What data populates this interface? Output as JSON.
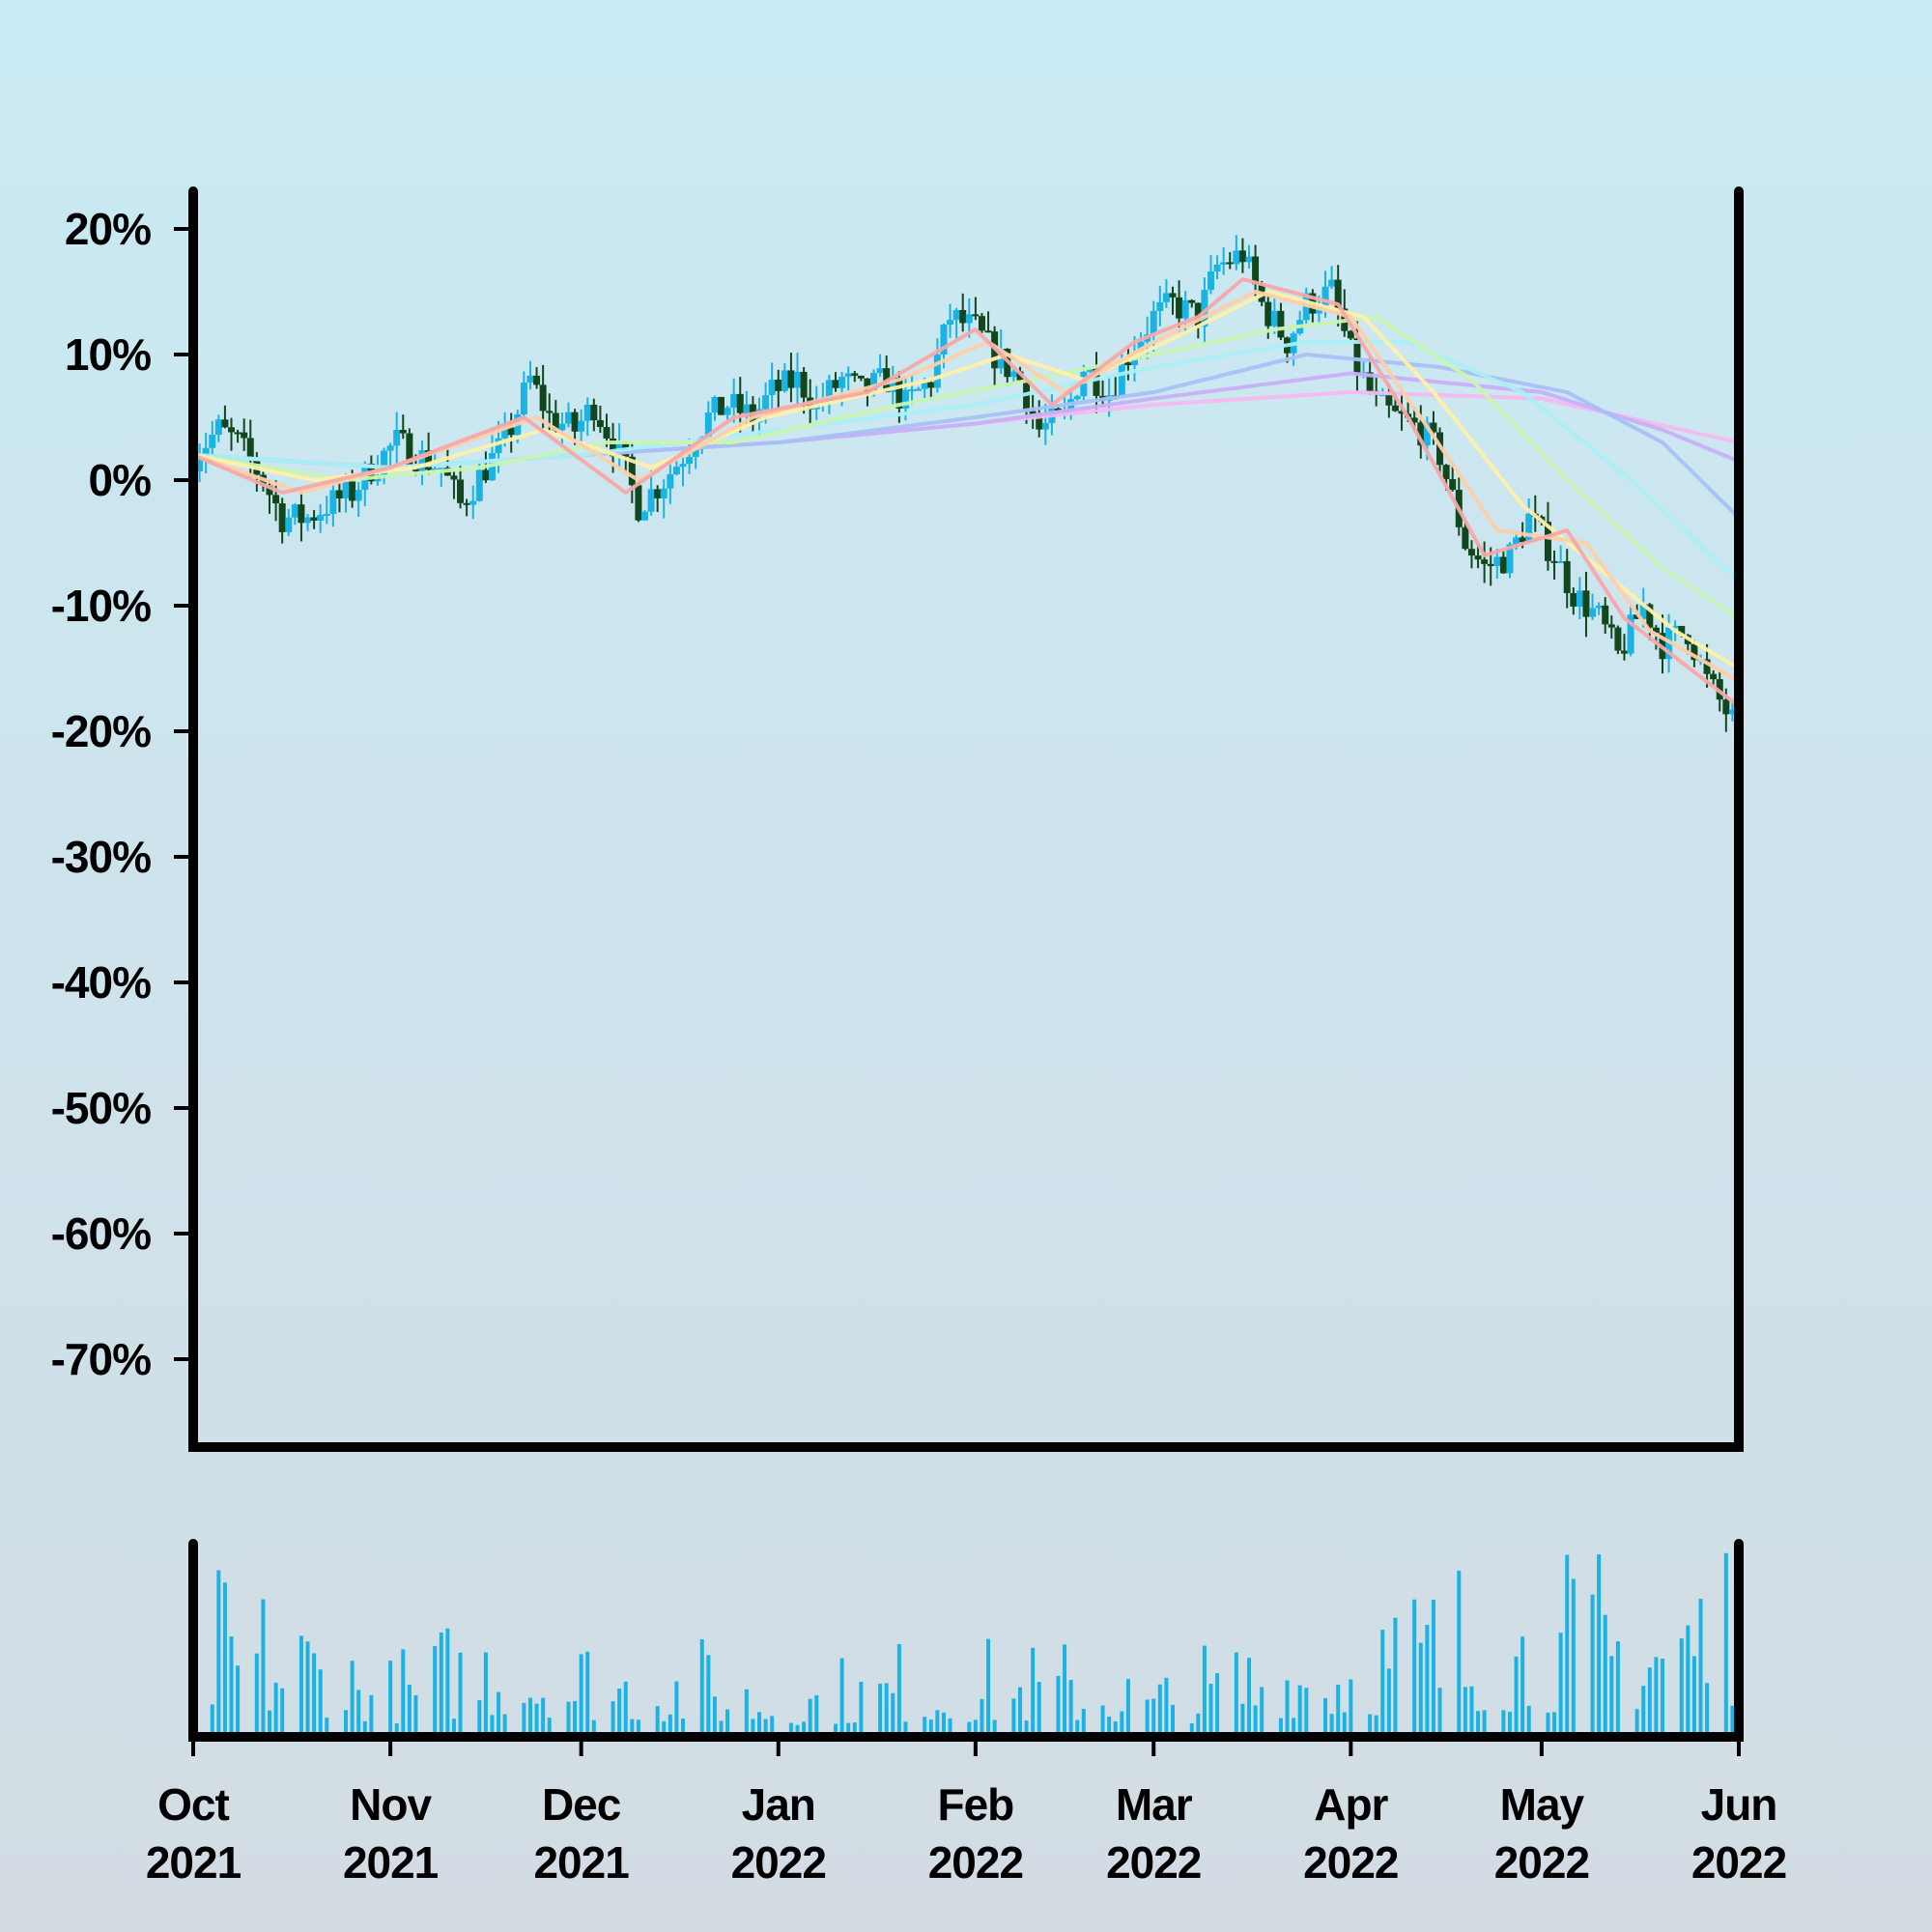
{
  "chart_data": {
    "type": "candlestick",
    "y_axis": {
      "unit": "%",
      "ylim": [
        -77,
        23
      ],
      "ticks": [
        20,
        10,
        0,
        -10,
        -20,
        -30,
        -40,
        -50,
        -60,
        -70
      ],
      "tick_labels": [
        "20%",
        "10%",
        "0%",
        "-10%",
        "-20%",
        "-30%",
        "-40%",
        "-50%",
        "-60%",
        "-70%"
      ]
    },
    "x_axis": {
      "start": "2021-10-01",
      "end": "2022-06-01",
      "ticks": [
        "2021-10-01",
        "2021-11-01",
        "2021-12-01",
        "2022-01-01",
        "2022-02-01",
        "2022-03-01",
        "2022-04-01",
        "2022-05-01",
        "2022-06-01"
      ],
      "tick_months": [
        "Oct",
        "Nov",
        "Dec",
        "Jan",
        "Feb",
        "Mar",
        "Apr",
        "May",
        "Jun"
      ],
      "tick_years": [
        "2021",
        "2021",
        "2021",
        "2022",
        "2022",
        "2022",
        "2022",
        "2022",
        "2022"
      ]
    },
    "price_close_pct": [
      [
        "2021-10-01",
        2
      ],
      [
        "2021-10-05",
        4
      ],
      [
        "2021-10-08",
        3
      ],
      [
        "2021-10-12",
        0
      ],
      [
        "2021-10-15",
        -3
      ],
      [
        "2021-10-19",
        -3
      ],
      [
        "2021-10-22",
        -2
      ],
      [
        "2021-10-26",
        -1
      ],
      [
        "2021-10-29",
        1
      ],
      [
        "2021-11-02",
        3
      ],
      [
        "2021-11-05",
        2
      ],
      [
        "2021-11-09",
        1
      ],
      [
        "2021-11-12",
        -2
      ],
      [
        "2021-11-16",
        1
      ],
      [
        "2021-11-19",
        3
      ],
      [
        "2021-11-23",
        8
      ],
      [
        "2021-11-26",
        5
      ],
      [
        "2021-11-30",
        4
      ],
      [
        "2021-12-03",
        6
      ],
      [
        "2021-12-07",
        2
      ],
      [
        "2021-12-10",
        -2
      ],
      [
        "2021-12-14",
        0
      ],
      [
        "2021-12-17",
        2
      ],
      [
        "2021-12-21",
        5
      ],
      [
        "2021-12-24",
        6
      ],
      [
        "2021-12-28",
        5
      ],
      [
        "2021-12-31",
        7
      ],
      [
        "2022-01-04",
        8
      ],
      [
        "2022-01-07",
        6
      ],
      [
        "2022-01-11",
        8
      ],
      [
        "2022-01-14",
        7
      ],
      [
        "2022-01-18",
        8
      ],
      [
        "2022-01-21",
        6
      ],
      [
        "2022-01-25",
        8
      ],
      [
        "2022-01-28",
        13
      ],
      [
        "2022-02-01",
        12
      ],
      [
        "2022-02-04",
        10
      ],
      [
        "2022-02-08",
        8
      ],
      [
        "2022-02-11",
        4
      ],
      [
        "2022-02-15",
        5
      ],
      [
        "2022-02-18",
        9
      ],
      [
        "2022-02-22",
        7
      ],
      [
        "2022-02-25",
        10
      ],
      [
        "2022-03-01",
        13
      ],
      [
        "2022-03-04",
        14
      ],
      [
        "2022-03-08",
        13
      ],
      [
        "2022-03-11",
        17
      ],
      [
        "2022-03-15",
        18
      ],
      [
        "2022-03-18",
        14
      ],
      [
        "2022-03-22",
        11
      ],
      [
        "2022-03-25",
        14
      ],
      [
        "2022-03-29",
        15
      ],
      [
        "2022-04-01",
        10
      ],
      [
        "2022-04-05",
        6
      ],
      [
        "2022-04-08",
        5
      ],
      [
        "2022-04-12",
        4
      ],
      [
        "2022-04-15",
        2
      ],
      [
        "2022-04-19",
        -5
      ],
      [
        "2022-04-22",
        -7
      ],
      [
        "2022-04-26",
        -6
      ],
      [
        "2022-04-29",
        -3
      ],
      [
        "2022-05-03",
        -6
      ],
      [
        "2022-05-06",
        -9
      ],
      [
        "2022-05-10",
        -11
      ],
      [
        "2022-05-13",
        -14
      ],
      [
        "2022-05-17",
        -10
      ],
      [
        "2022-05-20",
        -13
      ],
      [
        "2022-05-24",
        -12
      ],
      [
        "2022-05-27",
        -16
      ],
      [
        "2022-06-01",
        -20
      ]
    ],
    "moving_averages": [
      {
        "color": "#f7a8a8",
        "points": [
          [
            "2021-10-01",
            2
          ],
          [
            "2021-10-15",
            -1
          ],
          [
            "2021-11-01",
            1
          ],
          [
            "2021-11-22",
            5
          ],
          [
            "2021-12-08",
            -1
          ],
          [
            "2021-12-25",
            5
          ],
          [
            "2022-01-15",
            7
          ],
          [
            "2022-02-01",
            12
          ],
          [
            "2022-02-13",
            6
          ],
          [
            "2022-02-26",
            11
          ],
          [
            "2022-03-08",
            13
          ],
          [
            "2022-03-15",
            16
          ],
          [
            "2022-03-30",
            14
          ],
          [
            "2022-04-10",
            5
          ],
          [
            "2022-04-22",
            -6
          ],
          [
            "2022-05-05",
            -4
          ],
          [
            "2022-05-14",
            -11
          ],
          [
            "2022-06-01",
            -18
          ]
        ]
      },
      {
        "color": "#ffcfa8",
        "points": [
          [
            "2021-10-01",
            2
          ],
          [
            "2021-10-18",
            -1
          ],
          [
            "2021-11-01",
            1
          ],
          [
            "2021-11-24",
            5
          ],
          [
            "2021-12-10",
            0
          ],
          [
            "2021-12-28",
            5
          ],
          [
            "2022-01-20",
            8
          ],
          [
            "2022-02-03",
            11
          ],
          [
            "2022-02-15",
            7
          ],
          [
            "2022-03-01",
            11
          ],
          [
            "2022-03-17",
            15
          ],
          [
            "2022-04-01",
            13
          ],
          [
            "2022-04-12",
            5
          ],
          [
            "2022-04-24",
            -4
          ],
          [
            "2022-05-08",
            -5
          ],
          [
            "2022-05-18",
            -12
          ],
          [
            "2022-06-01",
            -16
          ]
        ]
      },
      {
        "color": "#fff0a8",
        "points": [
          [
            "2021-10-01",
            2
          ],
          [
            "2021-10-20",
            0
          ],
          [
            "2021-11-05",
            1
          ],
          [
            "2021-11-25",
            4
          ],
          [
            "2021-12-12",
            1
          ],
          [
            "2021-12-30",
            5
          ],
          [
            "2022-01-25",
            8
          ],
          [
            "2022-02-06",
            10
          ],
          [
            "2022-02-18",
            8
          ],
          [
            "2022-03-03",
            11
          ],
          [
            "2022-03-19",
            15
          ],
          [
            "2022-04-03",
            13
          ],
          [
            "2022-04-14",
            7
          ],
          [
            "2022-04-28",
            -2
          ],
          [
            "2022-05-10",
            -7
          ],
          [
            "2022-05-22",
            -12
          ],
          [
            "2022-06-01",
            -15
          ]
        ]
      },
      {
        "color": "#c8f5b0",
        "points": [
          [
            "2021-10-01",
            2
          ],
          [
            "2021-10-25",
            0
          ],
          [
            "2021-11-15",
            1
          ],
          [
            "2021-12-05",
            3
          ],
          [
            "2021-12-25",
            3
          ],
          [
            "2022-01-20",
            6
          ],
          [
            "2022-02-10",
            8
          ],
          [
            "2022-03-01",
            10
          ],
          [
            "2022-03-20",
            12
          ],
          [
            "2022-04-05",
            13
          ],
          [
            "2022-04-20",
            8
          ],
          [
            "2022-05-05",
            0
          ],
          [
            "2022-05-20",
            -7
          ],
          [
            "2022-06-01",
            -11
          ]
        ]
      },
      {
        "color": "#a8f0f5",
        "points": [
          [
            "2021-10-01",
            2
          ],
          [
            "2021-11-01",
            1
          ],
          [
            "2021-12-01",
            2
          ],
          [
            "2022-01-01",
            4
          ],
          [
            "2022-02-01",
            6
          ],
          [
            "2022-03-01",
            9
          ],
          [
            "2022-03-25",
            11
          ],
          [
            "2022-04-10",
            11
          ],
          [
            "2022-04-28",
            7
          ],
          [
            "2022-05-15",
            0
          ],
          [
            "2022-06-01",
            -8
          ]
        ]
      },
      {
        "color": "#a8c0f5",
        "points": [
          [
            "2021-10-01",
            2
          ],
          [
            "2021-11-01",
            1
          ],
          [
            "2021-12-01",
            2
          ],
          [
            "2022-01-01",
            3
          ],
          [
            "2022-02-01",
            5
          ],
          [
            "2022-03-01",
            7
          ],
          [
            "2022-03-25",
            10
          ],
          [
            "2022-04-15",
            9
          ],
          [
            "2022-05-05",
            7
          ],
          [
            "2022-05-20",
            3
          ],
          [
            "2022-06-01",
            -3
          ]
        ]
      },
      {
        "color": "#c8b0f5",
        "points": [
          [
            "2021-10-01",
            2
          ],
          [
            "2021-11-01",
            1
          ],
          [
            "2021-12-01",
            2
          ],
          [
            "2022-01-01",
            3
          ],
          [
            "2022-02-01",
            4.5
          ],
          [
            "2022-03-01",
            6.5
          ],
          [
            "2022-04-01",
            8.5
          ],
          [
            "2022-05-01",
            7
          ],
          [
            "2022-05-20",
            4
          ],
          [
            "2022-06-01",
            1.5
          ]
        ]
      },
      {
        "color": "#f5b8f0",
        "points": [
          [
            "2021-10-01",
            2
          ],
          [
            "2021-11-01",
            1
          ],
          [
            "2021-12-01",
            2
          ],
          [
            "2022-01-01",
            3
          ],
          [
            "2022-02-01",
            4.5
          ],
          [
            "2022-03-01",
            6
          ],
          [
            "2022-04-01",
            7
          ],
          [
            "2022-05-01",
            6.5
          ],
          [
            "2022-06-01",
            3
          ]
        ]
      }
    ],
    "volume_profile": [
      [
        "2021-10-01",
        0.55
      ],
      [
        "2021-10-20",
        0.45
      ],
      [
        "2021-11-01",
        0.25
      ],
      [
        "2021-11-20",
        0.5
      ],
      [
        "2021-12-01",
        0.35
      ],
      [
        "2021-12-20",
        0.3
      ],
      [
        "2022-01-01",
        0.2
      ],
      [
        "2022-01-20",
        0.3
      ],
      [
        "2022-02-01",
        0.3
      ],
      [
        "2022-02-20",
        0.3
      ],
      [
        "2022-03-01",
        0.2
      ],
      [
        "2022-03-20",
        0.4
      ],
      [
        "2022-04-01",
        0.45
      ],
      [
        "2022-04-20",
        0.6
      ],
      [
        "2022-05-01",
        0.55
      ],
      [
        "2022-05-20",
        0.65
      ],
      [
        "2022-06-01",
        0.75
      ]
    ],
    "colors": {
      "up": "#1ab3e3",
      "down": "#12461c",
      "volume": "#1ab3e3",
      "axis": "#000000"
    }
  }
}
